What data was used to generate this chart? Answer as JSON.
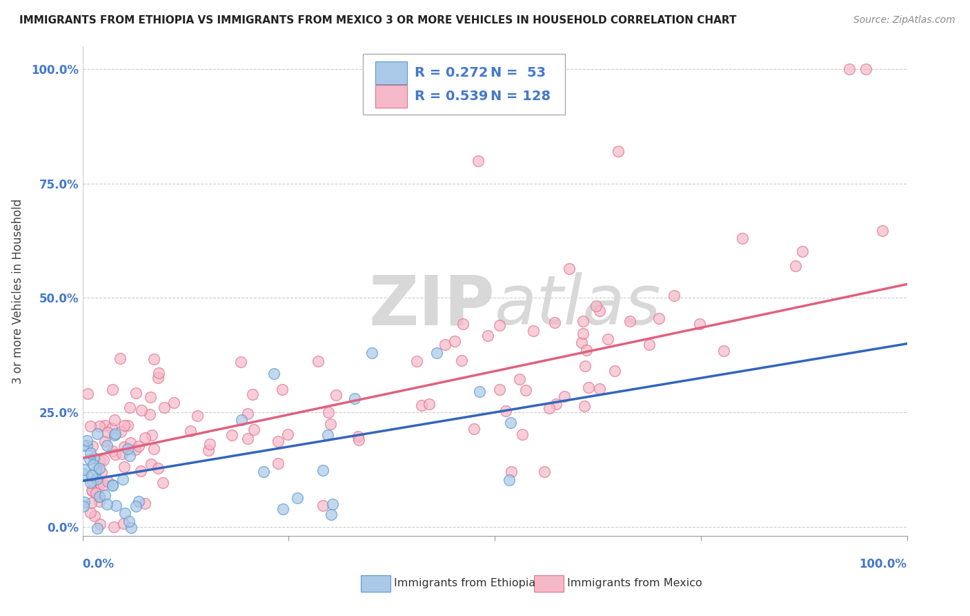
{
  "title": "IMMIGRANTS FROM ETHIOPIA VS IMMIGRANTS FROM MEXICO 3 OR MORE VEHICLES IN HOUSEHOLD CORRELATION CHART",
  "source": "Source: ZipAtlas.com",
  "ylabel": "3 or more Vehicles in Household",
  "xlim": [
    0,
    1
  ],
  "ylim": [
    -0.02,
    1.05
  ],
  "yticks": [
    0.0,
    0.25,
    0.5,
    0.75,
    1.0
  ],
  "ytick_labels": [
    "0.0%",
    "25.0%",
    "50.0%",
    "75.0%",
    "100.0%"
  ],
  "ethiopia_scatter_color": "#aac8e8",
  "ethiopia_scatter_edge": "#5599cc",
  "ethiopia_line_color": "#3366bb",
  "mexico_scatter_color": "#f5b8c8",
  "mexico_scatter_edge": "#e07090",
  "mexico_line_color": "#e06080",
  "grid_color": "#cccccc",
  "grid_linestyle": "--",
  "background_color": "#ffffff",
  "title_color": "#222222",
  "ylabel_color": "#444444",
  "tick_color": "#4477cc",
  "watermark_color": "#d8d8d8",
  "source_color": "#888888",
  "legend_edge_color": "#aaaaaa",
  "legend_text_color": "#4477cc",
  "eth_reg_intercept": 0.1,
  "eth_reg_slope": 0.3,
  "mex_reg_intercept": 0.15,
  "mex_reg_slope": 0.38,
  "title_fontsize": 11,
  "ylabel_fontsize": 12,
  "tick_fontsize": 12,
  "scatter_size": 130,
  "scatter_alpha": 0.7,
  "scatter_linewidth": 1.0,
  "reg_linewidth": 2.5
}
